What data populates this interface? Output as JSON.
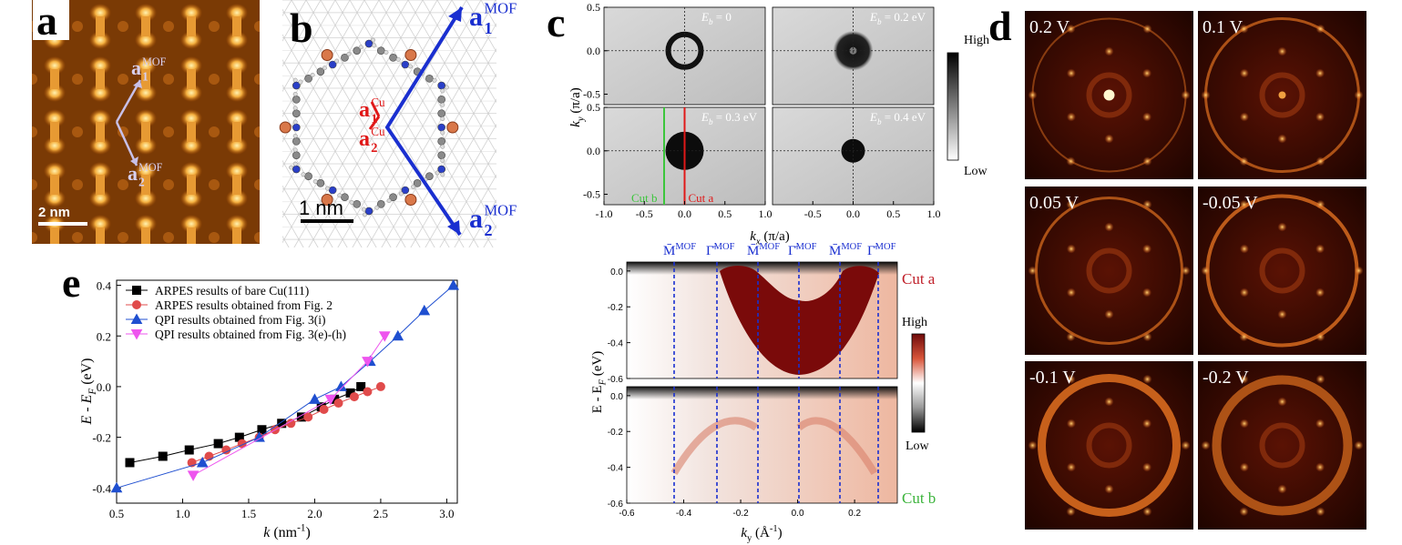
{
  "panels": {
    "a": {
      "label": "a",
      "scale_bar": "2 nm",
      "vectors": [
        {
          "base": "a",
          "sub": "1",
          "sup": "MOF"
        },
        {
          "base": "a",
          "sub": "2",
          "sup": "MOF"
        }
      ]
    },
    "b": {
      "label": "b",
      "scale_bar": "1 nm",
      "mof_vectors": [
        {
          "base": "a",
          "sub": "1",
          "sup": "MOF"
        },
        {
          "base": "a",
          "sub": "2",
          "sup": "MOF"
        }
      ],
      "cu_vectors": [
        {
          "base": "a",
          "sub": "1",
          "sup": "Cu"
        },
        {
          "base": "a",
          "sub": "2",
          "sup": "Cu"
        }
      ]
    },
    "c": {
      "label": "c",
      "maps": {
        "energies": [
          {
            "base": "E",
            "sub": "b",
            "after": " = 0"
          },
          {
            "base": "E",
            "sub": "b",
            "after": " = 0.2 eV"
          },
          {
            "base": "E",
            "sub": "b",
            "after": " = 0.3 eV"
          },
          {
            "base": "E",
            "sub": "b",
            "after": " = 0.4 eV"
          }
        ],
        "xlabel": {
          "base": "k",
          "sub": "x",
          "after": " (π/a)"
        },
        "ylabel": {
          "base": "k",
          "sub": "y",
          "after": " (π/a)"
        },
        "xlim": [
          -1,
          1
        ],
        "ylim": [
          -0.62,
          0.5
        ],
        "xticks": [
          {
            "value": -1,
            "label": "-1.0"
          },
          -0.5,
          {
            "value": 0,
            "label": "0.0"
          },
          0.5,
          {
            "value": 1,
            "label": "1.0"
          }
        ],
        "yticks": [
          0.5,
          {
            "value": 0,
            "label": "0.0"
          },
          -0.5
        ],
        "cuts": [
          "Cut b",
          "Cut a"
        ],
        "colorbar": [
          "High",
          "Low"
        ]
      },
      "cuts": {
        "xlim": [
          -0.6,
          0.35
        ],
        "ylim": [
          -0.6,
          0.05
        ],
        "xticks": [
          -0.6,
          -0.4,
          -0.2,
          {
            "value": 0,
            "label": "0.0"
          },
          0.2
        ],
        "yticks": [
          {
            "value": 0,
            "label": "0.0"
          },
          -0.2,
          -0.4,
          -0.6
        ],
        "xlabel": {
          "base": "k",
          "sub": "y",
          "after": " (Å",
          "sup": "-1",
          "end": ")"
        },
        "ylabel": {
          "base": "E - E",
          "sub": "F",
          "after": " (eV)"
        },
        "points": [
          {
            "base": "M̄",
            "sup": "MOF"
          },
          {
            "base": "Γ̄",
            "sup": "MOF"
          },
          {
            "base": "M̄",
            "sup": "MOF"
          },
          {
            "base": "Γ̄",
            "sup": "MOF"
          },
          {
            "base": "M̄",
            "sup": "MOF"
          },
          {
            "base": "Γ̄",
            "sup": "MOF"
          }
        ],
        "cut_labels": [
          "Cut a",
          "Cut b"
        ],
        "colorbar": [
          "High",
          "Low"
        ]
      }
    },
    "d": {
      "label": "d",
      "voltages": [
        "0.2 V",
        "0.1 V",
        "0.05 V",
        "-0.05 V",
        "-0.1 V",
        "-0.2 V"
      ]
    }
  },
  "chart_data": {
    "type": "line",
    "label": "e",
    "xlabel": {
      "base": "k",
      "after": " (nm",
      "sup": "-1",
      "end": ")"
    },
    "ylabel": {
      "base": "E - E",
      "sub": "F",
      "after": " (eV)"
    },
    "xlim": [
      0.5,
      3.08
    ],
    "ylim": [
      -0.46,
      0.42
    ],
    "xticks": [
      0.5,
      {
        "value": 1,
        "label": "1.0"
      },
      1.5,
      {
        "value": 2,
        "label": "2.0"
      },
      2.5,
      {
        "value": 3,
        "label": "3.0"
      }
    ],
    "yticks": [
      -0.4,
      -0.2,
      {
        "value": 0,
        "label": "0.0"
      },
      0.2,
      0.4
    ],
    "legend": "upper left",
    "series": [
      {
        "name": "ARPES results of bare Cu(111)",
        "color": "#000000",
        "marker": "square",
        "x": [
          0.6,
          0.85,
          1.05,
          1.27,
          1.43,
          1.6,
          1.75,
          1.9,
          2.05,
          2.15,
          2.27,
          2.35
        ],
        "values": [
          -0.3,
          -0.275,
          -0.25,
          -0.225,
          -0.2,
          -0.17,
          -0.145,
          -0.12,
          -0.08,
          -0.05,
          -0.025,
          0.0
        ]
      },
      {
        "name": "ARPES results obtained from Fig. 2",
        "color": "#e04b4b",
        "marker": "circle",
        "x": [
          1.07,
          1.2,
          1.33,
          1.45,
          1.58,
          1.7,
          1.82,
          1.95,
          2.07,
          2.18,
          2.3,
          2.4,
          2.5
        ],
        "values": [
          -0.3,
          -0.275,
          -0.25,
          -0.225,
          -0.2,
          -0.17,
          -0.145,
          -0.12,
          -0.09,
          -0.065,
          -0.04,
          -0.02,
          0.0
        ]
      },
      {
        "name": "QPI results obtained from Fig. 3(i)",
        "color": "#1f4fd0",
        "marker": "triangle",
        "x": [
          0.5,
          1.15,
          1.58,
          2.0,
          2.2,
          2.42,
          2.63,
          2.83,
          3.05
        ],
        "values": [
          -0.4,
          -0.3,
          -0.2,
          -0.05,
          0.0,
          0.1,
          0.2,
          0.3,
          0.4
        ]
      },
      {
        "name": "QPI results obtained from Fig. 3(e)-(h)",
        "color": "#ee55ee",
        "marker": "triangle-down",
        "x": [
          1.08,
          2.12,
          2.4,
          2.53
        ],
        "values": [
          -0.35,
          -0.05,
          0.1,
          0.2
        ]
      }
    ]
  }
}
